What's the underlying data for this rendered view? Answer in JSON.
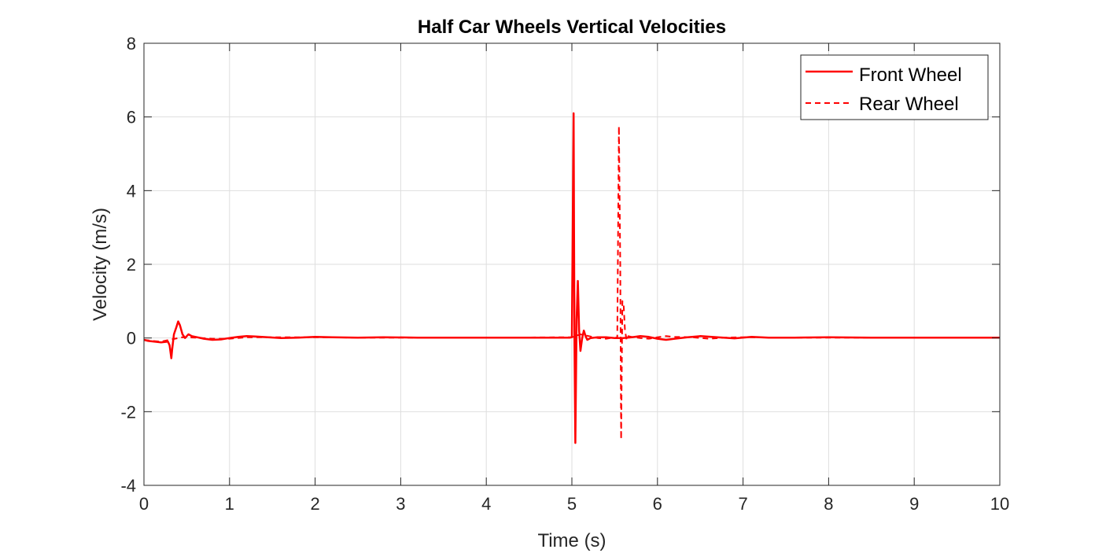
{
  "chart_data": {
    "type": "line",
    "title": "Half Car Wheels Vertical Velocities",
    "xlabel": "Time (s)",
    "ylabel": "Velocity (m/s)",
    "xlim": [
      0,
      10
    ],
    "ylim": [
      -4,
      8
    ],
    "xticks": [
      "0",
      "1",
      "2",
      "3",
      "4",
      "5",
      "6",
      "7",
      "8",
      "9",
      "10"
    ],
    "yticks": [
      "-4",
      "-2",
      "0",
      "2",
      "4",
      "6",
      "8"
    ],
    "grid": true,
    "legend_position": "top-right",
    "line_color": "#ff0000",
    "series": [
      {
        "name": "Front Wheel",
        "style": "solid",
        "x": [
          0,
          0.05,
          0.12,
          0.2,
          0.28,
          0.3,
          0.32,
          0.33,
          0.35,
          0.38,
          0.4,
          0.42,
          0.45,
          0.48,
          0.52,
          0.56,
          0.62,
          0.7,
          0.8,
          0.9,
          1.0,
          1.1,
          1.2,
          1.3,
          1.45,
          1.6,
          1.8,
          2.0,
          2.2,
          2.5,
          2.8,
          3.2,
          3.6,
          4.0,
          4.5,
          4.98,
          5.0,
          5.02,
          5.025,
          5.03,
          5.04,
          5.055,
          5.07,
          5.085,
          5.1,
          5.12,
          5.14,
          5.16,
          5.18,
          5.22,
          5.3,
          5.4,
          5.5,
          5.6,
          5.7,
          5.8,
          5.9,
          6.0,
          6.1,
          6.2,
          6.35,
          6.5,
          6.7,
          6.9,
          7.1,
          7.3,
          7.6,
          8.0,
          8.5,
          9.0,
          9.5,
          10.0
        ],
        "y": [
          -0.05,
          -0.08,
          -0.1,
          -0.12,
          -0.1,
          -0.2,
          -0.55,
          -0.3,
          0.1,
          0.3,
          0.45,
          0.35,
          0.1,
          0.0,
          0.1,
          0.05,
          0.02,
          -0.02,
          -0.05,
          -0.04,
          0.0,
          0.03,
          0.05,
          0.04,
          0.02,
          0.0,
          0.01,
          0.03,
          0.02,
          0.01,
          0.02,
          0.01,
          0.01,
          0.01,
          0.01,
          0.01,
          0.02,
          6.1,
          3.0,
          0.0,
          -2.85,
          0.5,
          1.55,
          0.2,
          -0.35,
          0.0,
          0.2,
          0.05,
          -0.05,
          0.0,
          0.02,
          0.02,
          0.0,
          0.0,
          0.02,
          0.05,
          0.03,
          -0.02,
          -0.05,
          -0.02,
          0.02,
          0.05,
          0.02,
          -0.01,
          0.03,
          0.01,
          0.01,
          0.02,
          0.01,
          0.01,
          0.01,
          0.01
        ]
      },
      {
        "name": "Rear Wheel",
        "style": "dashed",
        "x": [
          0,
          0.1,
          0.2,
          0.3,
          0.45,
          0.6,
          0.8,
          1.0,
          1.2,
          1.5,
          2.0,
          2.5,
          3.0,
          4.0,
          5.0,
          5.1,
          5.2,
          5.3,
          5.4,
          5.45,
          5.5,
          5.53,
          5.55,
          5.565,
          5.575,
          5.59,
          5.605,
          5.62,
          5.64,
          5.66,
          5.7,
          5.8,
          5.9,
          6.0,
          6.1,
          6.2,
          6.4,
          6.6,
          6.8,
          7.0,
          7.5,
          8.0,
          9.0,
          10.0
        ],
        "y": [
          -0.05,
          -0.08,
          -0.1,
          -0.05,
          0.02,
          0.01,
          -0.02,
          -0.02,
          0.02,
          0.02,
          0.02,
          0.01,
          0.01,
          0.01,
          0.02,
          0.1,
          0.05,
          0.0,
          -0.02,
          0.0,
          0.0,
          0.02,
          5.75,
          2.0,
          -2.75,
          1.0,
          0.9,
          0.2,
          -0.05,
          0.05,
          0.03,
          0.0,
          -0.02,
          0.02,
          0.05,
          0.03,
          0.02,
          -0.02,
          0.01,
          0.02,
          0.01,
          0.01,
          0.01,
          0.01
        ]
      }
    ]
  }
}
